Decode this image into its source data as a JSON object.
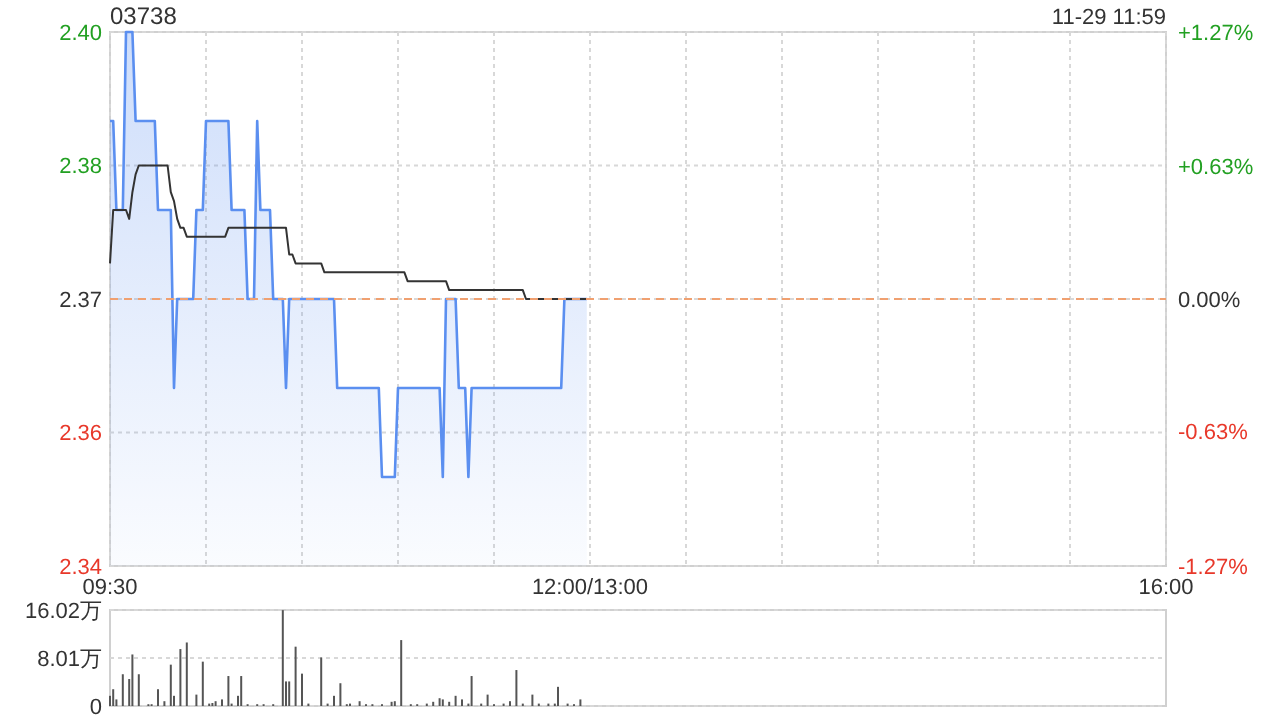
{
  "chart_data": {
    "type": "area",
    "title": "03738",
    "annotations": [
      "11-29 11:59"
    ],
    "categories": [
      "09:30",
      null,
      null,
      null,
      null,
      null,
      null,
      null,
      null,
      null,
      null,
      null,
      null,
      null,
      null,
      null,
      null,
      null,
      null,
      null,
      null,
      null,
      null,
      null,
      null,
      null,
      null,
      null,
      null,
      null,
      null,
      null,
      null,
      null,
      null,
      null,
      null,
      null,
      null,
      null,
      null,
      null,
      null,
      null,
      null,
      null,
      null,
      null,
      null,
      null,
      null,
      null,
      null,
      null,
      null,
      null,
      null,
      null,
      null,
      null,
      null,
      null,
      null,
      null,
      null,
      null,
      null,
      null,
      null,
      null,
      null,
      null,
      null,
      null,
      null,
      null,
      null,
      null,
      null,
      null,
      null,
      null,
      null,
      null,
      null,
      null,
      null,
      null,
      null,
      null,
      null,
      null,
      null,
      null,
      null,
      null,
      null,
      null,
      null,
      null,
      null,
      null,
      null,
      null,
      null,
      null,
      null,
      null,
      null,
      null,
      null,
      null,
      null,
      null,
      null,
      null,
      null,
      null,
      null,
      null,
      null,
      null,
      null,
      null,
      null,
      null,
      null,
      null,
      null,
      null,
      null,
      null,
      null,
      null,
      null,
      null,
      null,
      null,
      null,
      null,
      null,
      null,
      null,
      null,
      null,
      null,
      null,
      null,
      null,
      null,
      "12:00/13:00",
      null,
      null,
      null,
      null,
      null,
      null,
      null,
      null,
      null,
      null,
      null,
      null,
      null,
      null,
      null,
      null,
      null,
      null,
      null,
      null,
      null,
      null,
      null,
      null,
      null,
      null,
      null,
      null,
      null,
      null,
      null,
      null,
      null,
      null,
      null,
      null,
      null,
      null,
      null,
      null,
      null,
      null,
      null,
      null,
      null,
      null,
      null,
      null,
      null,
      null,
      null,
      null,
      null,
      null,
      null,
      null,
      null,
      null,
      null,
      null,
      null,
      null,
      null,
      null,
      null,
      null,
      null,
      null,
      null,
      null,
      null,
      null,
      null,
      null,
      null,
      null,
      null,
      null,
      null,
      null,
      null,
      null,
      null,
      null,
      null,
      null,
      null,
      null,
      null,
      null,
      null,
      null,
      null,
      null,
      null,
      null,
      null,
      null,
      null,
      null,
      null,
      null,
      null,
      null,
      null,
      null,
      null,
      null,
      null,
      null,
      null,
      null,
      null,
      null,
      null,
      null,
      null,
      null,
      null,
      null,
      null,
      null,
      null,
      null,
      null,
      null,
      null,
      null,
      null,
      null,
      null,
      null,
      null,
      null,
      null,
      null,
      null,
      null,
      null,
      null,
      null,
      null,
      null,
      null,
      null,
      null,
      null,
      null,
      null,
      null,
      null,
      null,
      null,
      null,
      null,
      null,
      null,
      null,
      null,
      null,
      null,
      null,
      null,
      null,
      null,
      null,
      null,
      null,
      null,
      null,
      null,
      null,
      null,
      null,
      null,
      null,
      null,
      null,
      null,
      "16:00"
    ],
    "ylim": [
      2.34,
      2.4
    ],
    "yticks": [
      {
        "value": 2.4,
        "label": "2.40"
      },
      {
        "value": 2.385,
        "label": "2.38"
      },
      {
        "value": 2.37,
        "label": "2.37"
      },
      {
        "value": 2.355,
        "label": "2.36"
      },
      {
        "value": 2.34,
        "label": "2.34"
      }
    ],
    "y2lim": [
      -1.27,
      1.27
    ],
    "y2ticks": [
      {
        "value": 1.27,
        "label": "+1.27%"
      },
      {
        "value": 0.63,
        "label": "+0.63%"
      },
      {
        "value": 0,
        "label": "0.00%"
      },
      {
        "value": -0.63,
        "label": "-0.63%"
      },
      {
        "value": -1.27,
        "label": "-1.27%"
      }
    ],
    "y3lim": [
      0,
      16.02
    ],
    "y3ticks": [
      {
        "value": 0,
        "label": "0"
      },
      {
        "value": 8.01,
        "label": "8.01万"
      },
      {
        "value": 16.02,
        "label": "16.02万"
      }
    ],
    "grid": true,
    "ref_lines": [
      {
        "axis": "y",
        "value": 2.37,
        "color": "#f0a070",
        "line_style": "dashed"
      }
    ],
    "series": [
      {
        "color": "#5b8ff0",
        "values": [
          2.39,
          2.39,
          2.38,
          2.38,
          2.38,
          2.4,
          2.4,
          2.4,
          2.39,
          2.39,
          2.39,
          2.39,
          2.39,
          2.39,
          2.39,
          2.38,
          2.38,
          2.38,
          2.38,
          2.38,
          2.36,
          2.37,
          2.37,
          2.37,
          2.37,
          2.37,
          2.37,
          2.38,
          2.38,
          2.38,
          2.39,
          2.39,
          2.39,
          2.39,
          2.39,
          2.39,
          2.39,
          2.39,
          2.38,
          2.38,
          2.38,
          2.38,
          2.38,
          2.37,
          2.37,
          2.37,
          2.39,
          2.38,
          2.38,
          2.38,
          2.38,
          2.37,
          2.37,
          2.37,
          2.37,
          2.36,
          2.37,
          2.37,
          2.37,
          2.37,
          2.37,
          2.37,
          2.37,
          2.37,
          2.37,
          2.37,
          2.37,
          2.37,
          2.37,
          2.37,
          2.37,
          2.36,
          2.36,
          2.36,
          2.36,
          2.36,
          2.36,
          2.36,
          2.36,
          2.36,
          2.36,
          2.36,
          2.36,
          2.36,
          2.36,
          2.35,
          2.35,
          2.35,
          2.35,
          2.35,
          2.36,
          2.36,
          2.36,
          2.36,
          2.36,
          2.36,
          2.36,
          2.36,
          2.36,
          2.36,
          2.36,
          2.36,
          2.36,
          2.36,
          2.35,
          2.37,
          2.37,
          2.37,
          2.37,
          2.36,
          2.36,
          2.36,
          2.35,
          2.36,
          2.36,
          2.36,
          2.36,
          2.36,
          2.36,
          2.36,
          2.36,
          2.36,
          2.36,
          2.36,
          2.36,
          2.36,
          2.36,
          2.36,
          2.36,
          2.36,
          2.36,
          2.36,
          2.36,
          2.36,
          2.36,
          2.36,
          2.36,
          2.36,
          2.36,
          2.36,
          2.36,
          2.36,
          2.37,
          2.37,
          2.37,
          2.37,
          2.37,
          2.37,
          2.37,
          2.37,
          null,
          null,
          null,
          null,
          null,
          null,
          null,
          null,
          null,
          null,
          null,
          null,
          null,
          null,
          null,
          null,
          null,
          null,
          null,
          null,
          null,
          null,
          null,
          null,
          null,
          null,
          null,
          null,
          null,
          null,
          null,
          null,
          null,
          null,
          null,
          null,
          null,
          null,
          null,
          null,
          null,
          null,
          null,
          null,
          null,
          null,
          null,
          null,
          null,
          null,
          null,
          null,
          null,
          null,
          null,
          null,
          null,
          null,
          null,
          null,
          null,
          null,
          null,
          null,
          null,
          null,
          null,
          null,
          null,
          null,
          null,
          null,
          null,
          null,
          null,
          null,
          null,
          null,
          null,
          null,
          null,
          null,
          null,
          null,
          null,
          null,
          null,
          null,
          null,
          null,
          null,
          null,
          null,
          null,
          null,
          null,
          null,
          null,
          null,
          null,
          null,
          null,
          null,
          null,
          null,
          null,
          null,
          null,
          null,
          null,
          null,
          null,
          null,
          null,
          null,
          null,
          null,
          null,
          null,
          null,
          null,
          null,
          null,
          null,
          null,
          null,
          null,
          null,
          null,
          null,
          null,
          null,
          null,
          null,
          null,
          null,
          null,
          null,
          null,
          null,
          null,
          null,
          null,
          null,
          null,
          null,
          null,
          null,
          null,
          null,
          null,
          null,
          null,
          null,
          null,
          null,
          null,
          null,
          null,
          null,
          null,
          null,
          null,
          null,
          null,
          null,
          null,
          null,
          null,
          null,
          null,
          null,
          null,
          null,
          null,
          null,
          null,
          null,
          null,
          null,
          null
        ]
      },
      {
        "type": "line",
        "color": "#333333",
        "values": [
          2.374,
          2.38,
          2.38,
          2.38,
          2.38,
          2.38,
          2.379,
          2.382,
          2.384,
          2.385,
          2.385,
          2.385,
          2.385,
          2.385,
          2.385,
          2.385,
          2.385,
          2.385,
          2.385,
          2.382,
          2.381,
          2.379,
          2.378,
          2.378,
          2.377,
          2.377,
          2.377,
          2.377,
          2.377,
          2.377,
          2.377,
          2.377,
          2.377,
          2.377,
          2.377,
          2.377,
          2.377,
          2.378,
          2.378,
          2.378,
          2.378,
          2.378,
          2.378,
          2.378,
          2.378,
          2.378,
          2.378,
          2.378,
          2.378,
          2.378,
          2.378,
          2.378,
          2.378,
          2.378,
          2.378,
          2.378,
          2.375,
          2.375,
          2.374,
          2.374,
          2.374,
          2.374,
          2.374,
          2.374,
          2.374,
          2.374,
          2.374,
          2.373,
          2.373,
          2.373,
          2.373,
          2.373,
          2.373,
          2.373,
          2.373,
          2.373,
          2.373,
          2.373,
          2.373,
          2.373,
          2.373,
          2.373,
          2.373,
          2.373,
          2.373,
          2.373,
          2.373,
          2.373,
          2.373,
          2.373,
          2.373,
          2.373,
          2.373,
          2.372,
          2.372,
          2.372,
          2.372,
          2.372,
          2.372,
          2.372,
          2.372,
          2.372,
          2.372,
          2.372,
          2.372,
          2.372,
          2.371,
          2.371,
          2.371,
          2.371,
          2.371,
          2.371,
          2.371,
          2.371,
          2.371,
          2.371,
          2.371,
          2.371,
          2.371,
          2.371,
          2.371,
          2.371,
          2.371,
          2.371,
          2.371,
          2.371,
          2.371,
          2.371,
          2.371,
          2.371,
          2.37,
          2.37,
          2.37,
          2.37,
          2.37,
          2.37,
          2.37,
          2.37,
          2.37,
          2.37,
          2.37,
          2.37,
          2.37,
          2.37,
          2.37,
          2.37,
          2.37,
          2.37,
          2.37,
          2.37,
          null,
          null,
          null,
          null,
          null,
          null,
          null,
          null,
          null,
          null,
          null,
          null,
          null,
          null,
          null,
          null,
          null,
          null,
          null,
          null,
          null,
          null,
          null,
          null,
          null,
          null,
          null,
          null,
          null,
          null,
          null,
          null,
          null,
          null,
          null,
          null,
          null,
          null,
          null,
          null,
          null,
          null,
          null,
          null,
          null,
          null,
          null,
          null,
          null,
          null,
          null,
          null,
          null,
          null,
          null,
          null,
          null,
          null,
          null,
          null,
          null,
          null,
          null,
          null,
          null,
          null,
          null,
          null,
          null,
          null,
          null,
          null,
          null,
          null,
          null,
          null,
          null,
          null,
          null,
          null,
          null,
          null,
          null,
          null,
          null,
          null,
          null,
          null,
          null,
          null,
          null,
          null,
          null,
          null,
          null,
          null,
          null,
          null,
          null,
          null,
          null,
          null,
          null,
          null,
          null,
          null,
          null,
          null,
          null,
          null,
          null,
          null,
          null,
          null,
          null,
          null,
          null,
          null,
          null,
          null,
          null,
          null,
          null,
          null,
          null,
          null,
          null,
          null,
          null,
          null,
          null,
          null,
          null,
          null,
          null,
          null,
          null,
          null,
          null,
          null,
          null,
          null,
          null,
          null,
          null,
          null,
          null,
          null,
          null,
          null,
          null,
          null,
          null,
          null,
          null,
          null,
          null,
          null,
          null,
          null,
          null,
          null,
          null,
          null,
          null,
          null,
          null,
          null,
          null,
          null,
          null,
          null,
          null,
          null,
          null,
          null,
          null,
          null,
          null,
          null,
          null
        ]
      },
      {
        "type": "bar",
        "axis": "y3",
        "color": "#555555",
        "values": [
          1.7,
          2.8,
          1.1,
          null,
          5.3,
          null,
          4.5,
          8.6,
          null,
          5.3,
          null,
          null,
          0.3,
          0.3,
          null,
          2.8,
          null,
          0.8,
          null,
          6.9,
          1.7,
          null,
          9.5,
          null,
          10.6,
          null,
          null,
          1.9,
          null,
          7.4,
          null,
          0.4,
          0.5,
          0.8,
          null,
          1.1,
          null,
          5.0,
          0.4,
          null,
          1.7,
          5.0,
          null,
          0.3,
          null,
          null,
          0.3,
          null,
          0.3,
          null,
          null,
          0.3,
          null,
          null,
          16.0,
          4.1,
          4.1,
          null,
          9.9,
          null,
          5.4,
          null,
          0.4,
          null,
          null,
          null,
          8.1,
          null,
          0.4,
          null,
          1.7,
          null,
          3.8,
          null,
          0.3,
          0.4,
          null,
          null,
          0.8,
          null,
          0.3,
          null,
          0.3,
          null,
          null,
          0.3,
          null,
          null,
          0.7,
          0.8,
          null,
          11.0,
          null,
          null,
          0.3,
          null,
          0.3,
          null,
          null,
          0.4,
          null,
          0.7,
          null,
          1.3,
          1.1,
          null,
          0.7,
          null,
          1.7,
          null,
          1.1,
          null,
          0.4,
          5.0,
          null,
          null,
          0.4,
          null,
          1.9,
          null,
          0.3,
          null,
          null,
          0.4,
          null,
          0.8,
          null,
          6.0,
          null,
          0.4,
          null,
          null,
          1.9,
          null,
          0.4,
          null,
          null,
          0.4,
          null,
          0.4,
          3.2,
          null,
          null,
          0.4,
          null,
          0.3,
          null,
          1.1,
          null,
          null,
          null,
          null,
          null,
          null,
          null,
          null,
          null,
          null,
          null,
          null,
          null,
          null,
          null,
          null,
          null,
          null,
          null,
          null,
          null,
          null,
          null,
          null,
          null,
          null,
          null,
          null,
          null,
          null,
          null,
          null,
          null,
          null,
          null,
          null,
          null,
          null,
          null,
          null,
          null,
          null,
          null,
          null,
          null,
          null,
          null,
          null,
          null,
          null,
          null,
          null,
          null,
          null,
          null,
          null,
          null,
          null,
          null,
          null,
          null,
          null,
          null,
          null,
          null,
          null,
          null,
          null,
          null,
          null,
          null,
          null,
          null,
          null,
          null,
          null,
          null,
          null,
          null,
          null,
          null,
          null,
          null,
          null,
          null,
          null,
          null,
          null,
          null,
          null,
          null,
          null,
          null,
          null,
          null,
          null,
          null,
          null,
          null,
          null,
          null,
          null,
          null,
          null,
          null,
          null,
          null,
          null,
          null,
          null,
          null,
          null,
          null,
          null,
          null,
          null,
          null,
          null,
          null,
          null,
          null,
          null,
          null,
          null,
          null,
          null,
          null,
          null,
          null,
          null,
          null,
          null,
          null,
          null,
          null,
          null,
          null,
          null,
          null,
          null,
          null,
          null,
          null,
          null,
          null,
          null,
          null,
          null,
          null,
          null,
          null,
          null,
          null,
          null,
          null,
          null,
          null,
          null,
          null,
          null,
          null,
          null,
          null,
          null,
          null,
          null,
          null,
          null,
          null,
          null,
          null,
          null,
          null,
          null,
          null,
          null,
          null,
          null,
          null,
          null,
          null,
          null,
          null
        ]
      }
    ]
  }
}
